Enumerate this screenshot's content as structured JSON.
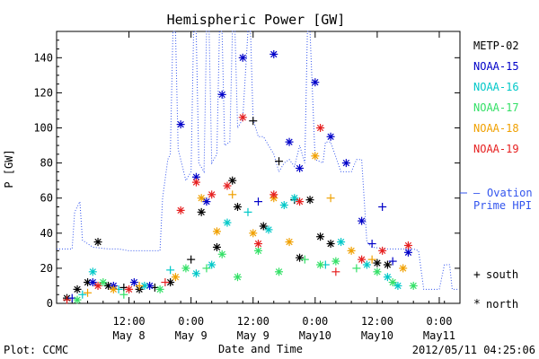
{
  "chart_data": {
    "type": "scatter",
    "title": "Hemispheric Power [GW]",
    "xlabel": "Date and Time",
    "ylabel": "P [GW]",
    "xlim": [
      "2012-05-07T22:00",
      "2012-05-11T04:00"
    ],
    "ylim": [
      0,
      155
    ],
    "y_ticks": [
      0,
      20,
      40,
      60,
      80,
      100,
      120,
      140
    ],
    "x_ticks": [
      {
        "t": "2012-05-08T12:00",
        "time": "12:00",
        "date": "May 8"
      },
      {
        "t": "2012-05-09T00:00",
        "time": "0:00",
        "date": "May 9"
      },
      {
        "t": "2012-05-09T12:00",
        "time": "12:00",
        "date": "May 9"
      },
      {
        "t": "2012-05-10T00:00",
        "time": "0:00",
        "date": "May10"
      },
      {
        "t": "2012-05-10T12:00",
        "time": "12:00",
        "date": "May10"
      },
      {
        "t": "2012-05-11T00:00",
        "time": "0:00",
        "date": "May11"
      }
    ],
    "grid": false,
    "legend_position": "right",
    "series": [
      {
        "name": "METP-02",
        "color": "#000000",
        "points": [
          [
            "2012-05-08T00:00",
            3,
            "n"
          ],
          [
            "2012-05-08T02:00",
            8,
            "n"
          ],
          [
            "2012-05-08T04:00",
            12,
            "n"
          ],
          [
            "2012-05-08T06:00",
            35,
            "n"
          ],
          [
            "2012-05-08T08:00",
            10,
            "n"
          ],
          [
            "2012-05-08T11:00",
            9,
            "p"
          ],
          [
            "2012-05-08T14:00",
            8,
            "n"
          ],
          [
            "2012-05-08T17:00",
            9,
            "p"
          ],
          [
            "2012-05-08T20:00",
            12,
            "n"
          ],
          [
            "2012-05-09T00:00",
            25,
            "p"
          ],
          [
            "2012-05-09T02:00",
            52,
            "n"
          ],
          [
            "2012-05-09T05:00",
            32,
            "n"
          ],
          [
            "2012-05-09T08:00",
            70,
            "n"
          ],
          [
            "2012-05-09T09:00",
            55,
            "n"
          ],
          [
            "2012-05-09T12:00",
            104,
            "p"
          ],
          [
            "2012-05-09T14:00",
            44,
            "n"
          ],
          [
            "2012-05-09T17:00",
            81,
            "p"
          ],
          [
            "2012-05-09T20:00",
            59,
            "p"
          ],
          [
            "2012-05-09T21:00",
            26,
            "n"
          ],
          [
            "2012-05-09T23:00",
            59,
            "n"
          ],
          [
            "2012-05-10T01:00",
            38,
            "n"
          ],
          [
            "2012-05-10T03:00",
            34,
            "n"
          ],
          [
            "2012-05-10T12:00",
            23,
            "n"
          ],
          [
            "2012-05-10T14:00",
            22,
            "n"
          ]
        ]
      },
      {
        "name": "NOAA-15",
        "color": "#0000c8",
        "points": [
          [
            "2012-05-08T01:00",
            3,
            "p"
          ],
          [
            "2012-05-08T05:00",
            12,
            "n"
          ],
          [
            "2012-05-08T09:00",
            10,
            "n"
          ],
          [
            "2012-05-08T13:00",
            12,
            "n"
          ],
          [
            "2012-05-08T16:00",
            10,
            "n"
          ],
          [
            "2012-05-08T22:00",
            102,
            "n"
          ],
          [
            "2012-05-09T01:00",
            72,
            "n"
          ],
          [
            "2012-05-09T03:00",
            58,
            "n"
          ],
          [
            "2012-05-09T06:00",
            119,
            "n"
          ],
          [
            "2012-05-09T10:00",
            140,
            "n"
          ],
          [
            "2012-05-09T13:00",
            58,
            "p"
          ],
          [
            "2012-05-09T16:00",
            142,
            "n"
          ],
          [
            "2012-05-09T19:00",
            92,
            "n"
          ],
          [
            "2012-05-09T21:00",
            77,
            "n"
          ],
          [
            "2012-05-10T00:00",
            126,
            "n"
          ],
          [
            "2012-05-10T03:00",
            95,
            "n"
          ],
          [
            "2012-05-10T06:00",
            80,
            "n"
          ],
          [
            "2012-05-10T09:00",
            47,
            "n"
          ],
          [
            "2012-05-10T11:00",
            34,
            "p"
          ],
          [
            "2012-05-10T13:00",
            55,
            "p"
          ],
          [
            "2012-05-10T15:00",
            24,
            "p"
          ],
          [
            "2012-05-10T18:00",
            29,
            "n"
          ]
        ]
      },
      {
        "name": "NOAA-16",
        "color": "#00c8c8",
        "points": [
          [
            "2012-05-08T03:00",
            5,
            "p"
          ],
          [
            "2012-05-08T05:00",
            18,
            "n"
          ],
          [
            "2012-05-08T10:00",
            8,
            "p"
          ],
          [
            "2012-05-08T15:00",
            10,
            "n"
          ],
          [
            "2012-05-08T20:00",
            19,
            "p"
          ],
          [
            "2012-05-09T01:00",
            17,
            "n"
          ],
          [
            "2012-05-09T04:00",
            22,
            "n"
          ],
          [
            "2012-05-09T07:00",
            46,
            "n"
          ],
          [
            "2012-05-09T11:00",
            52,
            "p"
          ],
          [
            "2012-05-09T15:00",
            42,
            "n"
          ],
          [
            "2012-05-09T18:00",
            56,
            "n"
          ],
          [
            "2012-05-09T20:00",
            60,
            "n"
          ],
          [
            "2012-05-10T02:00",
            22,
            "p"
          ],
          [
            "2012-05-10T05:00",
            35,
            "n"
          ],
          [
            "2012-05-10T10:00",
            22,
            "n"
          ],
          [
            "2012-05-10T14:00",
            15,
            "n"
          ],
          [
            "2012-05-10T16:00",
            10,
            "n"
          ]
        ]
      },
      {
        "name": "NOAA-17",
        "color": "#33e066",
        "points": [
          [
            "2012-05-08T02:00",
            2,
            "n"
          ],
          [
            "2012-05-08T07:00",
            12,
            "n"
          ],
          [
            "2012-05-08T11:00",
            5,
            "p"
          ],
          [
            "2012-05-08T18:00",
            8,
            "n"
          ],
          [
            "2012-05-08T23:00",
            20,
            "n"
          ],
          [
            "2012-05-09T03:00",
            20,
            "p"
          ],
          [
            "2012-05-09T06:00",
            28,
            "n"
          ],
          [
            "2012-05-09T09:00",
            15,
            "n"
          ],
          [
            "2012-05-09T13:00",
            30,
            "n"
          ],
          [
            "2012-05-09T17:00",
            18,
            "n"
          ],
          [
            "2012-05-09T22:00",
            25,
            "p"
          ],
          [
            "2012-05-10T01:00",
            22,
            "n"
          ],
          [
            "2012-05-10T04:00",
            24,
            "n"
          ],
          [
            "2012-05-10T08:00",
            20,
            "p"
          ],
          [
            "2012-05-10T12:00",
            18,
            "n"
          ],
          [
            "2012-05-10T15:00",
            12,
            "n"
          ],
          [
            "2012-05-10T19:00",
            10,
            "n"
          ]
        ]
      },
      {
        "name": "NOAA-18",
        "color": "#f0a000",
        "points": [
          [
            "2012-05-08T04:00",
            6,
            "p"
          ],
          [
            "2012-05-08T09:00",
            8,
            "n"
          ],
          [
            "2012-05-08T14:00",
            10,
            "p"
          ],
          [
            "2012-05-08T21:00",
            15,
            "n"
          ],
          [
            "2012-05-09T02:00",
            60,
            "n"
          ],
          [
            "2012-05-09T05:00",
            41,
            "n"
          ],
          [
            "2012-05-09T08:00",
            62,
            "p"
          ],
          [
            "2012-05-09T12:00",
            40,
            "n"
          ],
          [
            "2012-05-09T16:00",
            60,
            "n"
          ],
          [
            "2012-05-09T19:00",
            35,
            "n"
          ],
          [
            "2012-05-10T00:00",
            84,
            "n"
          ],
          [
            "2012-05-10T03:00",
            60,
            "p"
          ],
          [
            "2012-05-10T07:00",
            30,
            "n"
          ],
          [
            "2012-05-10T11:00",
            25,
            "p"
          ],
          [
            "2012-05-10T17:00",
            20,
            "n"
          ]
        ]
      },
      {
        "name": "NOAA-19",
        "color": "#e62020",
        "points": [
          [
            "2012-05-08T00:00",
            2,
            "p"
          ],
          [
            "2012-05-08T06:00",
            10,
            "n"
          ],
          [
            "2012-05-08T12:00",
            8,
            "n"
          ],
          [
            "2012-05-08T19:00",
            12,
            "p"
          ],
          [
            "2012-05-08T22:00",
            53,
            "n"
          ],
          [
            "2012-05-09T01:00",
            69,
            "n"
          ],
          [
            "2012-05-09T04:00",
            62,
            "n"
          ],
          [
            "2012-05-09T07:00",
            67,
            "n"
          ],
          [
            "2012-05-09T10:00",
            106,
            "n"
          ],
          [
            "2012-05-09T13:00",
            34,
            "n"
          ],
          [
            "2012-05-09T16:00",
            62,
            "n"
          ],
          [
            "2012-05-09T21:00",
            58,
            "n"
          ],
          [
            "2012-05-10T01:00",
            100,
            "n"
          ],
          [
            "2012-05-10T04:00",
            18,
            "p"
          ],
          [
            "2012-05-10T09:00",
            25,
            "n"
          ],
          [
            "2012-05-10T13:00",
            30,
            "n"
          ],
          [
            "2012-05-10T18:00",
            33,
            "n"
          ]
        ]
      }
    ],
    "ovation": {
      "name": "Ovation Prime HPI",
      "color": "#3355ee",
      "clip_max": 155,
      "points": [
        [
          "2012-05-07T22:00",
          31
        ],
        [
          "2012-05-08T01:00",
          31
        ],
        [
          "2012-05-08T01:30",
          52
        ],
        [
          "2012-05-08T02:30",
          58
        ],
        [
          "2012-05-08T03:00",
          36
        ],
        [
          "2012-05-08T05:00",
          32
        ],
        [
          "2012-05-08T08:00",
          31
        ],
        [
          "2012-05-08T10:00",
          31
        ],
        [
          "2012-05-08T12:00",
          30
        ],
        [
          "2012-05-08T14:00",
          30
        ],
        [
          "2012-05-08T16:00",
          30
        ],
        [
          "2012-05-08T18:00",
          30
        ],
        [
          "2012-05-08T18:30",
          60
        ],
        [
          "2012-05-08T19:30",
          82
        ],
        [
          "2012-05-08T20:00",
          85
        ],
        [
          "2012-05-08T20:30",
          155
        ],
        [
          "2012-05-08T21:00",
          155
        ],
        [
          "2012-05-08T21:30",
          88
        ],
        [
          "2012-05-08T23:00",
          70
        ],
        [
          "2012-05-09T00:00",
          75
        ],
        [
          "2012-05-09T00:30",
          155
        ],
        [
          "2012-05-09T01:00",
          155
        ],
        [
          "2012-05-09T01:30",
          80
        ],
        [
          "2012-05-09T02:30",
          75
        ],
        [
          "2012-05-09T03:00",
          155
        ],
        [
          "2012-05-09T03:30",
          155
        ],
        [
          "2012-05-09T04:00",
          80
        ],
        [
          "2012-05-09T05:00",
          85
        ],
        [
          "2012-05-09T05:30",
          155
        ],
        [
          "2012-05-09T06:00",
          155
        ],
        [
          "2012-05-09T06:30",
          90
        ],
        [
          "2012-05-09T07:30",
          92
        ],
        [
          "2012-05-09T08:00",
          155
        ],
        [
          "2012-05-09T08:30",
          155
        ],
        [
          "2012-05-09T09:00",
          100
        ],
        [
          "2012-05-09T10:00",
          105
        ],
        [
          "2012-05-09T11:00",
          155
        ],
        [
          "2012-05-09T11:30",
          155
        ],
        [
          "2012-05-09T12:00",
          105
        ],
        [
          "2012-05-09T13:00",
          95
        ],
        [
          "2012-05-09T14:00",
          95
        ],
        [
          "2012-05-09T15:00",
          90
        ],
        [
          "2012-05-09T16:00",
          85
        ],
        [
          "2012-05-09T17:00",
          75
        ],
        [
          "2012-05-09T18:00",
          80
        ],
        [
          "2012-05-09T19:00",
          82
        ],
        [
          "2012-05-09T20:00",
          78
        ],
        [
          "2012-05-09T21:00",
          90
        ],
        [
          "2012-05-09T22:00",
          80
        ],
        [
          "2012-05-09T22:30",
          155
        ],
        [
          "2012-05-09T23:00",
          155
        ],
        [
          "2012-05-10T00:00",
          82
        ],
        [
          "2012-05-10T01:30",
          80
        ],
        [
          "2012-05-10T02:00",
          92
        ],
        [
          "2012-05-10T03:00",
          92
        ],
        [
          "2012-05-10T05:00",
          75
        ],
        [
          "2012-05-10T07:00",
          75
        ],
        [
          "2012-05-10T08:00",
          82
        ],
        [
          "2012-05-10T09:00",
          82
        ],
        [
          "2012-05-10T10:00",
          35
        ],
        [
          "2012-05-10T11:00",
          32
        ],
        [
          "2012-05-10T14:00",
          31
        ],
        [
          "2012-05-10T17:00",
          31
        ],
        [
          "2012-05-10T19:00",
          31
        ],
        [
          "2012-05-10T20:00",
          30
        ],
        [
          "2012-05-10T21:00",
          8
        ],
        [
          "2012-05-11T00:00",
          8
        ],
        [
          "2012-05-11T01:00",
          22
        ],
        [
          "2012-05-11T02:00",
          22
        ],
        [
          "2012-05-11T02:30",
          8
        ],
        [
          "2012-05-11T03:30",
          8
        ]
      ]
    },
    "marker_legend": {
      "south_symbol": "+",
      "south_label": "south",
      "north_symbol": "*",
      "north_label": "north"
    }
  },
  "footer": {
    "plot_label": "Plot: CCMC",
    "timestamp": "2012/05/11 04:25:06"
  },
  "ovation_label": {
    "dash": "—",
    "line1": "Ovation",
    "line2": "Prime HPI"
  }
}
